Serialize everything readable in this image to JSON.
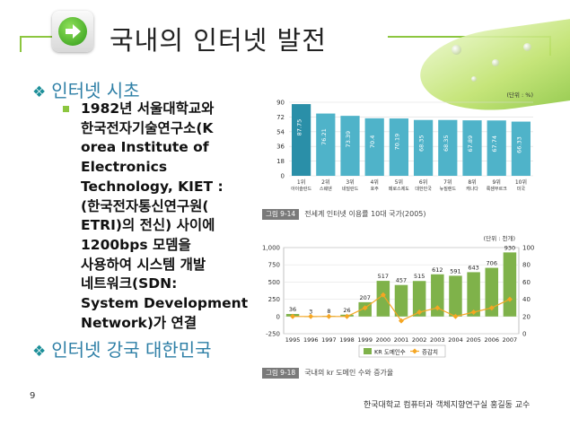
{
  "slide": {
    "title": "국내의 인터넷 발전",
    "bullet1": "인터넷 시초",
    "body_lines": [
      "1982년 서울대학교와",
      "한국전자기술연구소(K",
      "orea Institute of",
      "Electronics",
      "Technology, KIET :",
      "(한국전자통신연구원(",
      "ETRI)의 전신) 사이에",
      "1200bps 모뎀을",
      "사용하여 시스템 개발",
      "네트워크(SDN:",
      "System Development",
      "Network)가 연결"
    ],
    "bullet2": "인터넷 강국 대한민국",
    "page_number": "9",
    "footer": "한국대학교 컴퓨터과 객체지향연구실 홍길동 교수",
    "diamond_icon": "❖",
    "accent": "#8cc63f",
    "bullet_color": "#2e7fa6"
  },
  "chart_data": [
    {
      "type": "bar",
      "unit_label": "(단위 : %)",
      "categories": [
        [
          "1위",
          "아이슬란드"
        ],
        [
          "2위",
          "스웨덴"
        ],
        [
          "3위",
          "네덜란드"
        ],
        [
          "4위",
          "호주"
        ],
        [
          "5위",
          "페로스제도"
        ],
        [
          "6위",
          "대한민국"
        ],
        [
          "7위",
          "뉴질랜드"
        ],
        [
          "8위",
          "캐나다"
        ],
        [
          "9위",
          "룩셈부르크"
        ],
        [
          "10위",
          "미국"
        ]
      ],
      "values": [
        87.75,
        76.21,
        73.39,
        70.4,
        70.19,
        68.35,
        68.35,
        67.89,
        67.74,
        66.33
      ],
      "value_labels": [
        "87.75",
        "76.21",
        "73.39",
        "70.4",
        "70.19",
        "68.35",
        "68.35",
        "67.89",
        "67.74",
        "66.33"
      ],
      "yticks": [
        "0",
        "18",
        "36",
        "54",
        "72",
        "90"
      ],
      "ylim": [
        0,
        90
      ],
      "caption_fig": "그림 9-14",
      "caption": "전세계 인터넷 이용률 10대 국가(2005)",
      "bar_color": "#4fb3c9",
      "highlight_color": "#2a8fa8"
    },
    {
      "type": "bar+line",
      "unit_label": "(단위 : 천개)",
      "categories": [
        "1995",
        "1996",
        "1997",
        "1998",
        "1999",
        "2000",
        "2001",
        "2002",
        "2003",
        "2004",
        "2005",
        "2006",
        "2007"
      ],
      "bar_series": {
        "name": "KR 도메인수",
        "values": [
          36,
          3,
          8,
          26,
          207,
          517,
          457,
          515,
          612,
          591,
          643,
          706,
          930
        ]
      },
      "line_series": {
        "name": "증감치",
        "values": [
          20,
          20,
          20,
          20,
          30,
          45,
          15,
          25,
          30,
          20,
          25,
          30,
          40
        ]
      },
      "bar_labels": [
        "36",
        "3",
        "8",
        "26",
        "207",
        "517",
        "457",
        "515",
        "612",
        "591",
        "643",
        "706",
        "930"
      ],
      "left_ticks": [
        "-250",
        "0",
        "250",
        "500",
        "750",
        "1,000"
      ],
      "left_ylim": [
        -250,
        1000
      ],
      "right_ticks": [
        "0",
        "20",
        "40",
        "60",
        "80",
        "100"
      ],
      "right_ylim": [
        0,
        100
      ],
      "caption_fig": "그림 9-18",
      "caption": "국내의 kr 도메인 수와 증가율",
      "bar_color": "#7fb24a",
      "line_color": "#f5a623"
    }
  ]
}
